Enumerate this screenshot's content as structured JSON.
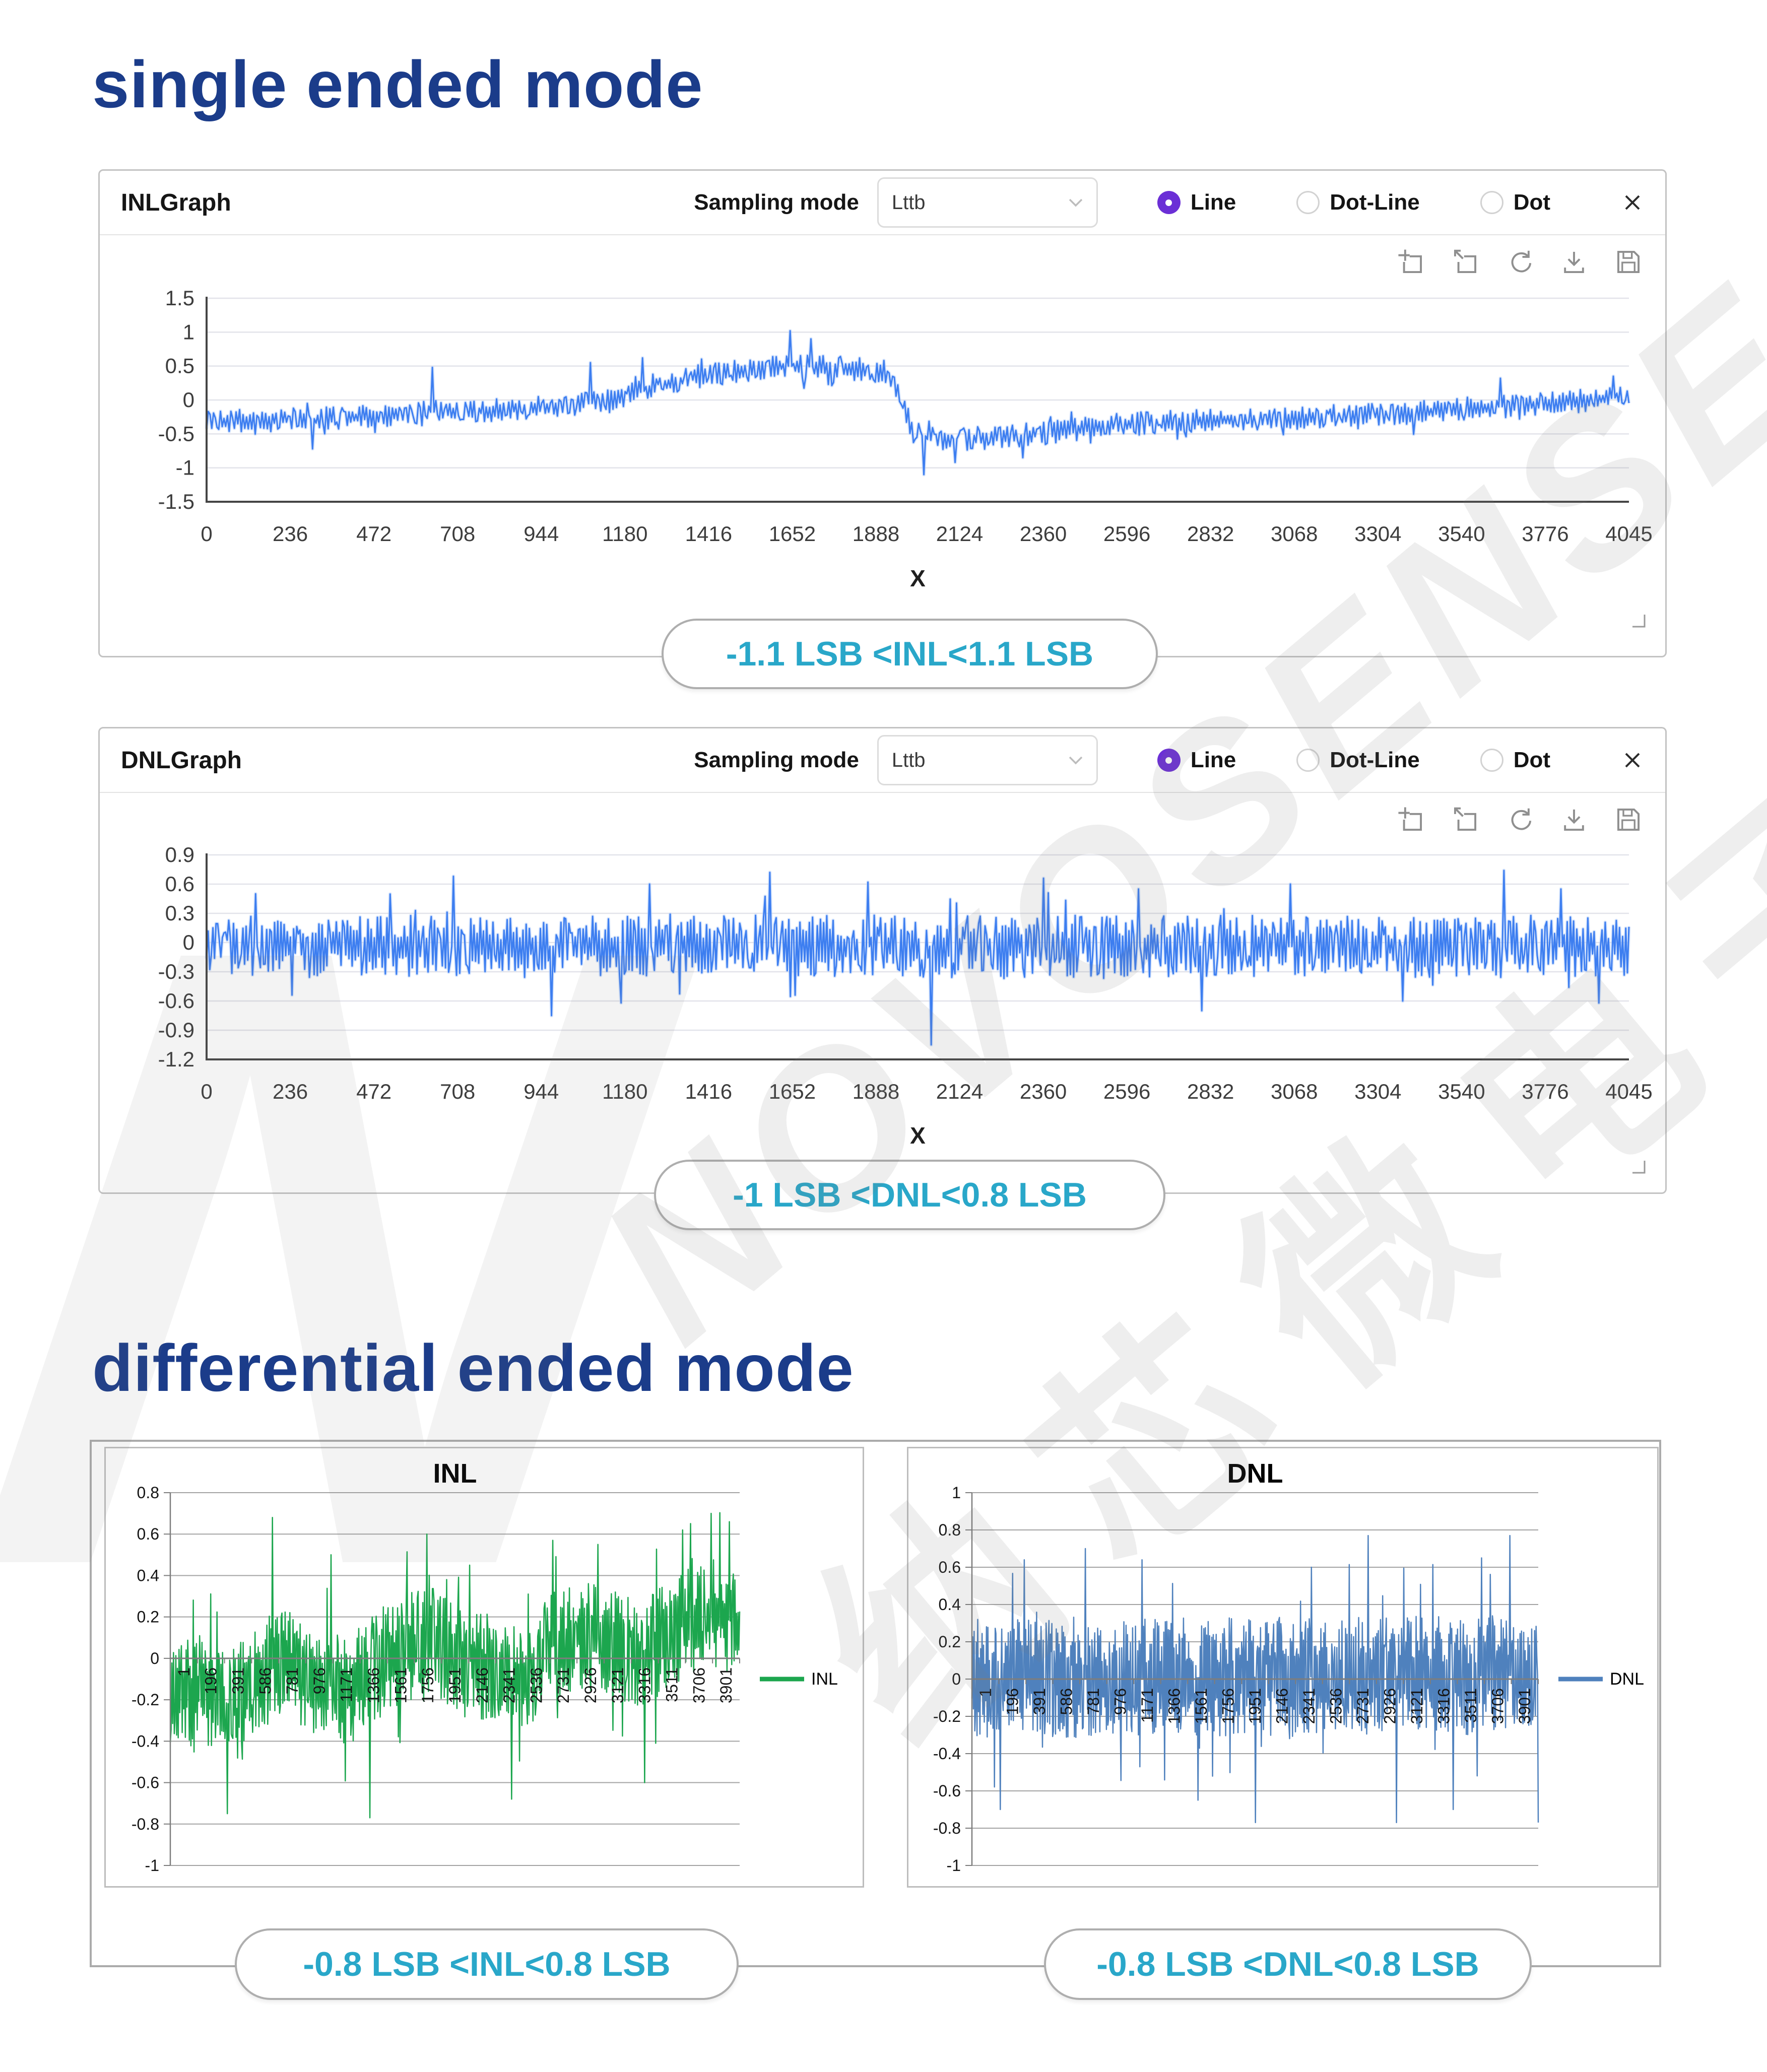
{
  "sections": {
    "single": {
      "title": "single ended mode"
    },
    "differential": {
      "title": "differential ended mode"
    }
  },
  "watermark": {
    "line1": "NOVOSENSE",
    "line2": "纳芯微电子",
    "letter": "N"
  },
  "panels": [
    {
      "title": "INLGraph",
      "sampling_label": "Sampling mode",
      "dropdown_value": "Lttb",
      "radios": [
        {
          "label": "Line",
          "selected": true
        },
        {
          "label": "Dot-Line",
          "selected": false
        },
        {
          "label": "Dot",
          "selected": false
        }
      ],
      "toolbar_icons": [
        "zoom-area",
        "zoom-out",
        "refresh",
        "download",
        "save"
      ],
      "annotation": "-1.1 LSB <INL<1.1 LSB"
    },
    {
      "title": "DNLGraph",
      "sampling_label": "Sampling mode",
      "dropdown_value": "Lttb",
      "radios": [
        {
          "label": "Line",
          "selected": true
        },
        {
          "label": "Dot-Line",
          "selected": false
        },
        {
          "label": "Dot",
          "selected": false
        }
      ],
      "toolbar_icons": [
        "zoom-area",
        "zoom-out",
        "refresh",
        "download",
        "save"
      ],
      "annotation": "-1 LSB <DNL<0.8 LSB"
    }
  ],
  "diff_section": {
    "inl_annotation": "-0.8 LSB <INL<0.8 LSB",
    "dnl_annotation": "-0.8 LSB <DNL<0.8 LSB"
  },
  "colors": {
    "accent_navy": "#1b3c8a",
    "annotation_cyan": "#29a7c9",
    "se_line_blue": "#3d7ef0",
    "diff_inl_green": "#1ca64e",
    "diff_dnl_blue": "#4f81bd",
    "radio_selected_purple": "#6b2fd6"
  },
  "chart_data": [
    {
      "id": "se_inl",
      "type": "line",
      "title": "",
      "xlabel": "X",
      "series": [
        {
          "name": "INL",
          "color": "#3d7ef0"
        }
      ],
      "xlim": [
        0,
        4045
      ],
      "ylim": [
        -1.5,
        1.5
      ],
      "grid": true,
      "legend_position": "none",
      "x_ticks": [
        "0",
        "236",
        "472",
        "708",
        "944",
        "1180",
        "1416",
        "1652",
        "1888",
        "2124",
        "2360",
        "2596",
        "2832",
        "3068",
        "3304",
        "3540",
        "3776",
        "4045"
      ],
      "y_ticks": [
        1.5,
        1,
        0.5,
        0,
        -0.5,
        -1,
        -1.5
      ],
      "y_tick_labels": [
        "1.5",
        "1",
        "0.5",
        "0",
        "-0.5",
        "-1",
        "-1.5"
      ],
      "summary": "-1.1 LSB < INL < 1.1 LSB",
      "n": 820,
      "seed": 11,
      "noise": 0.17,
      "trend": [
        [
          0,
          -0.32
        ],
        [
          180,
          -0.3
        ],
        [
          400,
          -0.26
        ],
        [
          620,
          -0.18
        ],
        [
          820,
          -0.15
        ],
        [
          1000,
          -0.1
        ],
        [
          1150,
          -0.02
        ],
        [
          1300,
          0.22
        ],
        [
          1400,
          0.35
        ],
        [
          1500,
          0.42
        ],
        [
          1650,
          0.5
        ],
        [
          1800,
          0.48
        ],
        [
          1930,
          0.42
        ],
        [
          1975,
          0.1
        ],
        [
          2010,
          -0.5
        ],
        [
          2100,
          -0.58
        ],
        [
          2250,
          -0.55
        ],
        [
          2400,
          -0.48
        ],
        [
          2550,
          -0.38
        ],
        [
          2700,
          -0.33
        ],
        [
          2850,
          -0.3
        ],
        [
          3000,
          -0.28
        ],
        [
          3150,
          -0.25
        ],
        [
          3300,
          -0.22
        ],
        [
          3450,
          -0.18
        ],
        [
          3600,
          -0.12
        ],
        [
          3750,
          -0.08
        ],
        [
          3900,
          -0.02
        ],
        [
          4045,
          0.05
        ]
      ],
      "spikes": [
        [
          300,
          -0.72
        ],
        [
          640,
          0.48
        ],
        [
          1090,
          0.55
        ],
        [
          1240,
          0.62
        ],
        [
          1660,
          1.02
        ],
        [
          1720,
          0.9
        ],
        [
          2040,
          -1.1
        ],
        [
          2130,
          -0.92
        ],
        [
          2320,
          -0.85
        ],
        [
          3680,
          0.32
        ],
        [
          4000,
          0.35
        ]
      ]
    },
    {
      "id": "se_dnl",
      "type": "line",
      "title": "",
      "xlabel": "X",
      "series": [
        {
          "name": "DNL",
          "color": "#3d7ef0"
        }
      ],
      "xlim": [
        0,
        4045
      ],
      "ylim": [
        -1.2,
        0.9
      ],
      "grid": true,
      "legend_position": "none",
      "x_ticks": [
        "0",
        "236",
        "472",
        "708",
        "944",
        "1180",
        "1416",
        "1652",
        "1888",
        "2124",
        "2360",
        "2596",
        "2832",
        "3068",
        "3304",
        "3540",
        "3776",
        "4045"
      ],
      "y_ticks": [
        0.9,
        0.6,
        0.3,
        0,
        -0.3,
        -0.6,
        -0.9,
        -1.2
      ],
      "y_tick_labels": [
        "0.9",
        "0.6",
        "0.3",
        "0",
        "-0.3",
        "-0.6",
        "-0.9",
        "-1.2"
      ],
      "summary": "-1 LSB < DNL < 0.8 LSB",
      "n": 900,
      "seed": 22,
      "noise": 0.32,
      "trend": [
        [
          0,
          -0.04
        ],
        [
          4045,
          -0.04
        ]
      ],
      "spikes": [
        [
          140,
          0.5
        ],
        [
          700,
          0.68
        ],
        [
          980,
          -0.75
        ],
        [
          1260,
          0.6
        ],
        [
          1600,
          0.72
        ],
        [
          1880,
          0.62
        ],
        [
          2060,
          -1.05
        ],
        [
          2380,
          0.66
        ],
        [
          2650,
          0.55
        ],
        [
          2830,
          -0.7
        ],
        [
          3080,
          0.6
        ],
        [
          3400,
          -0.6
        ],
        [
          3690,
          0.74
        ],
        [
          3850,
          0.55
        ],
        [
          3960,
          -0.62
        ]
      ]
    },
    {
      "id": "diff_inl",
      "type": "line",
      "title": "INL",
      "xlabel": "",
      "series": [
        {
          "name": "INL",
          "color": "#1ca64e"
        }
      ],
      "xlim": [
        1,
        3901
      ],
      "ylim": [
        -1,
        0.8
      ],
      "grid": true,
      "legend_position": "right",
      "categories": [
        "1",
        "196",
        "391",
        "586",
        "781",
        "976",
        "1171",
        "1366",
        "1561",
        "1756",
        "1951",
        "2146",
        "2341",
        "2536",
        "2731",
        "2926",
        "3121",
        "3316",
        "3511",
        "3706",
        "3901"
      ],
      "y_ticks": [
        0.8,
        0.6,
        0.4,
        0.2,
        0,
        -0.2,
        -0.4,
        -0.6,
        -0.8,
        -1
      ],
      "y_tick_labels": [
        "0.8",
        "0.6",
        "0.4",
        "0.2",
        "0",
        "-0.2",
        "-0.4",
        "-0.6",
        "-0.8",
        "-1"
      ],
      "summary": "-0.8 LSB < INL < 0.8 LSB",
      "n": 720,
      "seed": 33,
      "noise": 0.26,
      "trend": [
        [
          1,
          -0.2
        ],
        [
          200,
          -0.15
        ],
        [
          400,
          -0.22
        ],
        [
          600,
          -0.08
        ],
        [
          800,
          -0.02
        ],
        [
          1000,
          -0.12
        ],
        [
          1200,
          -0.15
        ],
        [
          1400,
          -0.05
        ],
        [
          1600,
          0.05
        ],
        [
          1800,
          0.08
        ],
        [
          2000,
          0
        ],
        [
          2200,
          -0.05
        ],
        [
          2400,
          -0.12
        ],
        [
          2600,
          0.05
        ],
        [
          2800,
          0.12
        ],
        [
          3000,
          0.08
        ],
        [
          3200,
          0.02
        ],
        [
          3400,
          0.1
        ],
        [
          3600,
          0.2
        ],
        [
          3750,
          0.22
        ],
        [
          3901,
          0.15
        ]
      ],
      "spikes": [
        [
          390,
          -0.75
        ],
        [
          700,
          0.68
        ],
        [
          1100,
          0.5
        ],
        [
          1370,
          -0.77
        ],
        [
          1760,
          0.6
        ],
        [
          2050,
          0.45
        ],
        [
          2340,
          -0.68
        ],
        [
          2620,
          0.57
        ],
        [
          2930,
          0.55
        ],
        [
          3250,
          -0.6
        ],
        [
          3510,
          0.62
        ],
        [
          3706,
          0.7
        ],
        [
          3830,
          0.66
        ]
      ]
    },
    {
      "id": "diff_dnl",
      "type": "line",
      "title": "DNL",
      "xlabel": "",
      "series": [
        {
          "name": "DNL",
          "color": "#4f81bd"
        }
      ],
      "xlim": [
        1,
        3901
      ],
      "ylim": [
        -1,
        1
      ],
      "grid": true,
      "legend_position": "right",
      "categories": [
        "1",
        "196",
        "391",
        "586",
        "781",
        "976",
        "1171",
        "1366",
        "1561",
        "1756",
        "1951",
        "2146",
        "2341",
        "2536",
        "2731",
        "2926",
        "3121",
        "3316",
        "3511",
        "3706",
        "3901"
      ],
      "y_ticks": [
        1,
        0.8,
        0.6,
        0.4,
        0.2,
        0,
        -0.2,
        -0.4,
        -0.6,
        -0.8,
        -1
      ],
      "y_tick_labels": [
        "1",
        "0.8",
        "0.6",
        "0.4",
        "0.2",
        "0",
        "-0.2",
        "-0.4",
        "-0.6",
        "-0.8",
        "-1"
      ],
      "summary": "-0.8 LSB < DNL < 0.8 LSB",
      "n": 780,
      "seed": 44,
      "noise": 0.32,
      "trend": [
        [
          1,
          0
        ],
        [
          3901,
          0.02
        ]
      ],
      "spikes": [
        [
          196,
          -0.7
        ],
        [
          360,
          0.64
        ],
        [
          781,
          0.7
        ],
        [
          1171,
          0.64
        ],
        [
          1560,
          -0.65
        ],
        [
          1951,
          -0.77
        ],
        [
          2339,
          0.6
        ],
        [
          2731,
          0.77
        ],
        [
          2926,
          -0.77
        ],
        [
          3316,
          -0.7
        ],
        [
          3511,
          0.65
        ],
        [
          3706,
          0.77
        ],
        [
          3901,
          -0.77
        ]
      ]
    }
  ]
}
